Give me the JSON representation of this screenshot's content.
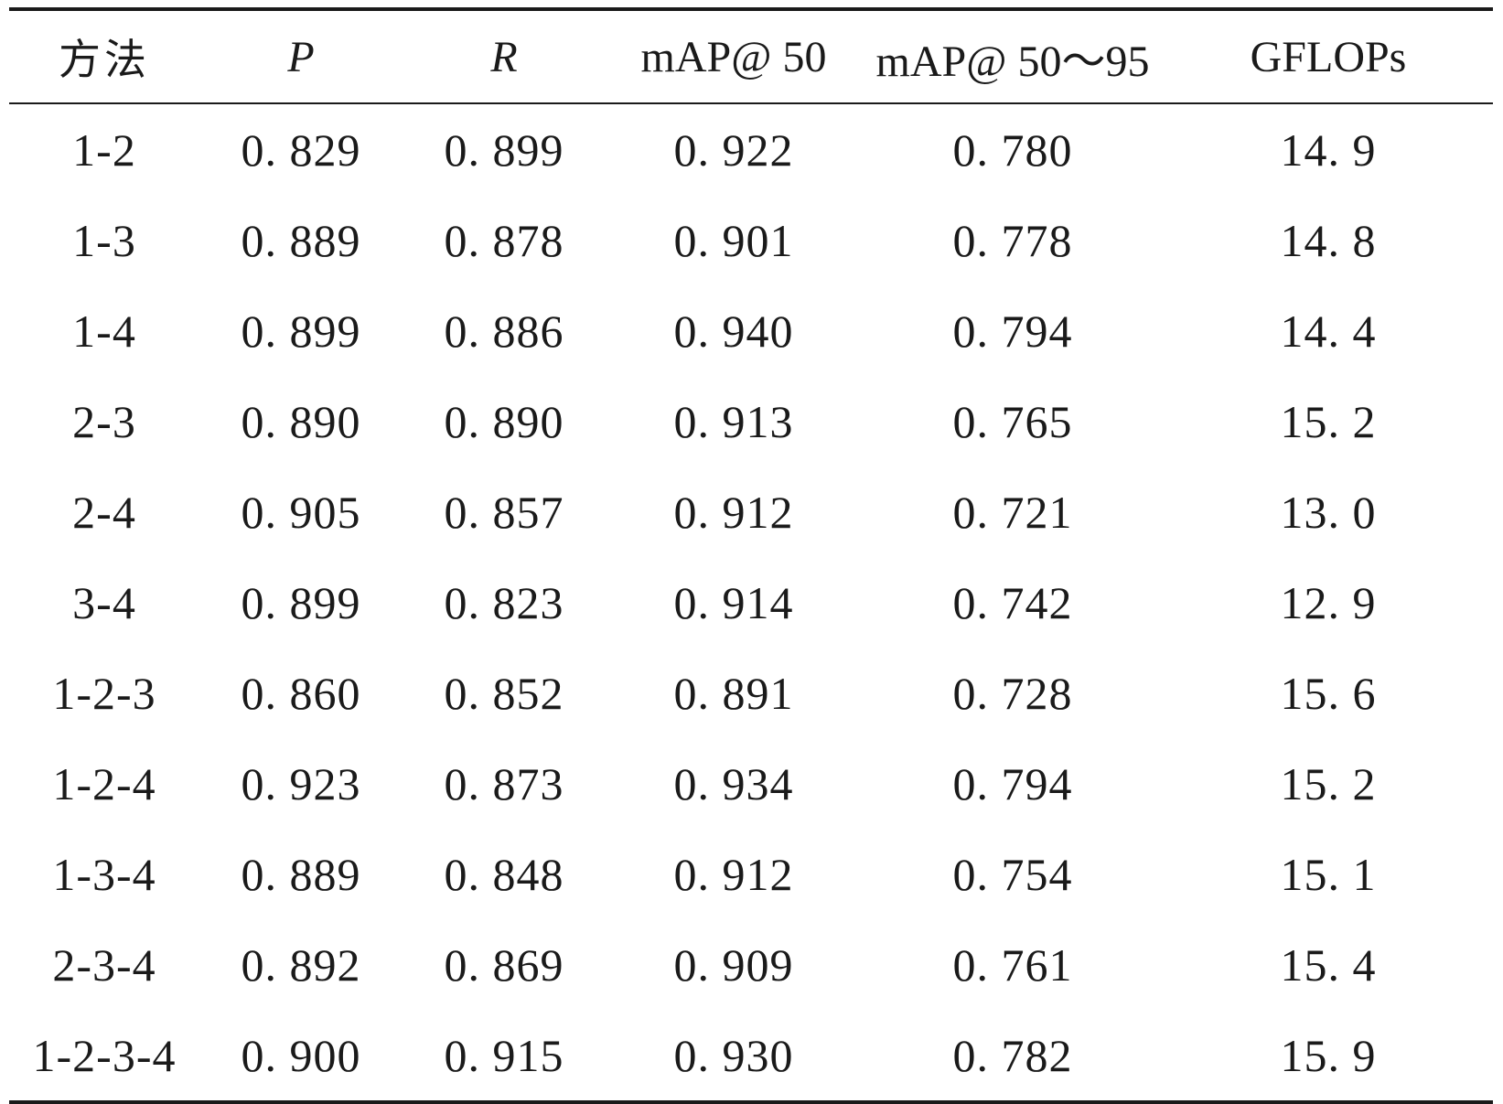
{
  "table": {
    "headers": [
      "方法",
      "P",
      "R",
      "mAP@ 50",
      "mAP@ 50～95",
      "GFLOPs"
    ],
    "rows": [
      [
        "1-2",
        "0. 829",
        "0. 899",
        "0. 922",
        "0. 780",
        "14. 9"
      ],
      [
        "1-3",
        "0. 889",
        "0. 878",
        "0. 901",
        "0. 778",
        "14. 8"
      ],
      [
        "1-4",
        "0. 899",
        "0. 886",
        "0. 940",
        "0. 794",
        "14. 4"
      ],
      [
        "2-3",
        "0. 890",
        "0. 890",
        "0. 913",
        "0. 765",
        "15. 2"
      ],
      [
        "2-4",
        "0. 905",
        "0. 857",
        "0. 912",
        "0. 721",
        "13. 0"
      ],
      [
        "3-4",
        "0. 899",
        "0. 823",
        "0. 914",
        "0. 742",
        "12. 9"
      ],
      [
        "1-2-3",
        "0. 860",
        "0. 852",
        "0. 891",
        "0. 728",
        "15. 6"
      ],
      [
        "1-2-4",
        "0. 923",
        "0. 873",
        "0. 934",
        "0. 794",
        "15. 2"
      ],
      [
        "1-3-4",
        "0. 889",
        "0. 848",
        "0. 912",
        "0. 754",
        "15. 1"
      ],
      [
        "2-3-4",
        "0. 892",
        "0. 869",
        "0. 909",
        "0. 761",
        "15. 4"
      ],
      [
        "1-2-3-4",
        "0. 900",
        "0. 915",
        "0. 930",
        "0. 782",
        "15. 9"
      ]
    ]
  }
}
